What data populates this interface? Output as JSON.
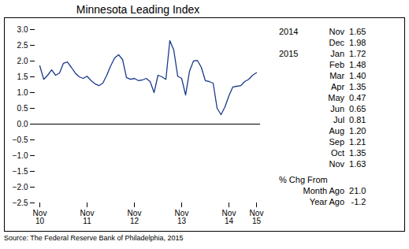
{
  "chart_data": {
    "type": "line",
    "title": "Minnesota Leading Index",
    "source": "Source: The Federal Reserve Bank of Philadelphia, 2015",
    "color": "#1a3a8a",
    "categories": [
      "Nov\n10",
      null,
      null,
      null,
      null,
      null,
      null,
      null,
      null,
      null,
      null,
      null,
      "Nov\n11",
      null,
      null,
      null,
      null,
      null,
      null,
      null,
      null,
      null,
      null,
      null,
      "Nov\n12",
      null,
      null,
      null,
      null,
      null,
      null,
      null,
      null,
      null,
      null,
      null,
      "Nov\n13",
      null,
      null,
      null,
      null,
      null,
      null,
      null,
      null,
      null,
      null,
      null,
      "Nov\n14",
      null,
      null,
      null,
      null,
      null,
      null,
      "Nov\n15"
    ],
    "values": [
      1.85,
      1.42,
      1.55,
      1.72,
      1.55,
      1.62,
      1.93,
      1.97,
      1.8,
      1.62,
      1.5,
      1.45,
      1.52,
      1.38,
      1.28,
      1.22,
      1.3,
      1.55,
      1.85,
      2.1,
      2.2,
      2.05,
      1.48,
      1.42,
      1.45,
      1.38,
      1.4,
      1.45,
      1.35,
      1.0,
      1.55,
      1.5,
      1.42,
      2.65,
      2.35,
      1.52,
      1.45,
      0.92,
      1.68,
      2.0,
      2.02,
      1.8,
      1.38,
      1.35,
      1.3,
      0.5,
      0.3,
      0.55,
      0.9,
      1.18,
      1.2,
      1.22,
      1.35,
      1.42,
      1.55,
      1.63
    ],
    "ylim": [
      -2.5,
      3.0
    ],
    "yticks": [
      -2.5,
      {
        "value": -2.0,
        "label": "−2.0"
      },
      -1.5,
      {
        "value": -1.0,
        "label": "−1.0"
      },
      -0.5,
      {
        "value": 0.0,
        "label": "0.0"
      },
      0.5,
      {
        "value": 1.0,
        "label": "1.0"
      },
      1.5,
      {
        "value": 2.0,
        "label": "2.0"
      },
      2.5,
      {
        "value": 3.0,
        "label": "3.0"
      }
    ],
    "grid": false,
    "annotations": [
      [
        "2014",
        "Nov",
        "1.65"
      ],
      [
        null,
        "Dec",
        "1.98"
      ],
      [
        "2015",
        "Jan",
        "1.72"
      ],
      [
        null,
        "Feb",
        "1.48"
      ],
      [
        null,
        "Mar",
        "1.40"
      ],
      [
        null,
        "Apr",
        "1.35"
      ],
      [
        null,
        "May",
        "0.47"
      ],
      [
        null,
        "Jun",
        "0.65"
      ],
      [
        null,
        "Jul",
        "0.81"
      ],
      [
        null,
        "Aug",
        "1.20"
      ],
      [
        null,
        "Sep",
        "1.21"
      ],
      [
        null,
        "Oct",
        "1.35"
      ],
      [
        null,
        "Nov",
        "1.63"
      ],
      [
        "% Chg From"
      ],
      [
        "Month Ago",
        "21.0"
      ],
      [
        "Year Ago",
        "-1.2"
      ]
    ]
  }
}
